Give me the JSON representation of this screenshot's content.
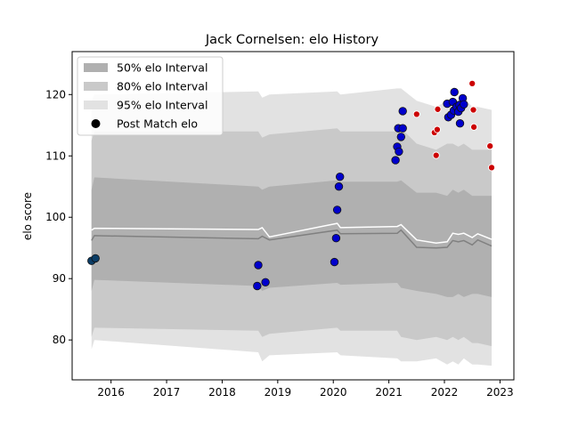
{
  "chart_data": {
    "type": "scatter",
    "title": "Jack Cornelsen: elo History",
    "xlabel": "",
    "ylabel": "elo score",
    "xlim": [
      2015.3,
      2023.25
    ],
    "ylim": [
      73.5,
      127
    ],
    "xticks": [
      2016,
      2017,
      2018,
      2019,
      2020,
      2021,
      2022,
      2023
    ],
    "yticks": [
      80,
      90,
      100,
      110,
      120
    ],
    "grid": false,
    "legend_placement": "top-left",
    "legend": [
      {
        "key": "i50",
        "label": "50% elo Interval",
        "kind": "patch",
        "color": "#b0b0b0"
      },
      {
        "key": "i80",
        "label": "80% elo Interval",
        "kind": "patch",
        "color": "#c9c9c9"
      },
      {
        "key": "i95",
        "label": "95% elo Interval",
        "kind": "patch",
        "color": "#e2e2e2"
      },
      {
        "key": "post",
        "label": "Post Match elo",
        "kind": "marker",
        "color": "#000000"
      }
    ],
    "bands": {
      "x": [
        2015.65,
        2015.7,
        2018.65,
        2018.72,
        2018.85,
        2020.07,
        2020.13,
        2021.15,
        2021.22,
        2021.5,
        2021.85,
        2022.05,
        2022.15,
        2022.25,
        2022.35,
        2022.5,
        2022.6,
        2022.85
      ],
      "q025": [
        78.5,
        80.0,
        78.0,
        76.5,
        77.5,
        78.0,
        77.5,
        77.0,
        76.5,
        76.5,
        77.0,
        76.0,
        76.5,
        76.0,
        77.0,
        76.0,
        76.0,
        75.8
      ],
      "q10": [
        80.5,
        82.0,
        81.5,
        80.5,
        81.0,
        82.0,
        81.5,
        81.5,
        80.5,
        80.0,
        80.5,
        80.0,
        80.5,
        80.0,
        80.5,
        79.5,
        79.5,
        79.0
      ],
      "q25": [
        88.0,
        89.8,
        88.8,
        88.0,
        88.5,
        89.3,
        89.0,
        89.3,
        88.5,
        88.0,
        87.5,
        87.0,
        87.0,
        87.5,
        87.0,
        87.5,
        87.5,
        87.0
      ],
      "q50": [
        96.2,
        97.0,
        96.5,
        96.9,
        96.3,
        97.9,
        97.3,
        97.4,
        97.9,
        95.1,
        95.0,
        95.1,
        96.2,
        96.0,
        96.2,
        95.5,
        96.3,
        95.3
      ],
      "q75": [
        104.5,
        106.5,
        105.0,
        104.5,
        105.0,
        106.0,
        105.8,
        105.8,
        106.0,
        104.0,
        104.0,
        103.5,
        104.5,
        104.0,
        104.5,
        103.5,
        103.5,
        103.5
      ],
      "q90": [
        112.5,
        114.0,
        114.0,
        113.0,
        113.5,
        114.5,
        114.0,
        114.0,
        114.5,
        112.0,
        111.0,
        112.0,
        112.0,
        111.5,
        112.0,
        111.0,
        111.0,
        111.0
      ],
      "q975": [
        119.0,
        120.0,
        120.5,
        119.5,
        120.0,
        120.5,
        120.0,
        121.0,
        121.0,
        119.0,
        118.0,
        119.0,
        119.5,
        119.0,
        119.5,
        118.0,
        118.0,
        117.5
      ],
      "mean": [
        97.9,
        98.2,
        98.0,
        98.3,
        96.8,
        99.0,
        98.3,
        98.5,
        98.8,
        96.3,
        95.8,
        96.0,
        97.4,
        97.2,
        97.4,
        96.7,
        97.3,
        96.4
      ]
    },
    "points": [
      {
        "x": 2015.65,
        "y": 92.9,
        "color": "#0b3d66"
      },
      {
        "x": 2015.72,
        "y": 93.3,
        "color": "#0b3d66"
      },
      {
        "x": 2018.65,
        "y": 92.2,
        "color": "#0000cc"
      },
      {
        "x": 2018.63,
        "y": 88.8,
        "color": "#0000cc"
      },
      {
        "x": 2018.78,
        "y": 89.4,
        "color": "#0000cc"
      },
      {
        "x": 2020.02,
        "y": 92.7,
        "color": "#0000cc"
      },
      {
        "x": 2020.05,
        "y": 96.6,
        "color": "#0000cc"
      },
      {
        "x": 2020.07,
        "y": 101.2,
        "color": "#0000cc"
      },
      {
        "x": 2020.1,
        "y": 105.0,
        "color": "#0000cc"
      },
      {
        "x": 2020.12,
        "y": 106.6,
        "color": "#0000cc"
      },
      {
        "x": 2021.12,
        "y": 109.3,
        "color": "#0000cc"
      },
      {
        "x": 2021.15,
        "y": 111.5,
        "color": "#0000cc"
      },
      {
        "x": 2021.18,
        "y": 110.7,
        "color": "#0000cc"
      },
      {
        "x": 2021.17,
        "y": 114.5,
        "color": "#0000cc"
      },
      {
        "x": 2021.22,
        "y": 113.1,
        "color": "#0000cc"
      },
      {
        "x": 2021.25,
        "y": 114.5,
        "color": "#0000cc"
      },
      {
        "x": 2021.25,
        "y": 117.3,
        "color": "#0000cc"
      },
      {
        "x": 2021.5,
        "y": 116.8,
        "color": "#cc0000"
      },
      {
        "x": 2021.82,
        "y": 113.8,
        "color": "#cc0000"
      },
      {
        "x": 2021.85,
        "y": 110.1,
        "color": "#cc0000"
      },
      {
        "x": 2021.87,
        "y": 114.3,
        "color": "#cc0000"
      },
      {
        "x": 2021.88,
        "y": 117.6,
        "color": "#cc0000"
      },
      {
        "x": 2022.05,
        "y": 118.5,
        "color": "#0000cc"
      },
      {
        "x": 2022.07,
        "y": 116.3,
        "color": "#0000cc"
      },
      {
        "x": 2022.12,
        "y": 116.7,
        "color": "#0000cc"
      },
      {
        "x": 2022.15,
        "y": 118.8,
        "color": "#0000cc"
      },
      {
        "x": 2022.17,
        "y": 117.4,
        "color": "#0000cc"
      },
      {
        "x": 2022.18,
        "y": 120.4,
        "color": "#0000cc"
      },
      {
        "x": 2022.22,
        "y": 118.0,
        "color": "#0000cc"
      },
      {
        "x": 2022.25,
        "y": 117.2,
        "color": "#0000cc"
      },
      {
        "x": 2022.27,
        "y": 118.3,
        "color": "#0000cc"
      },
      {
        "x": 2022.28,
        "y": 115.3,
        "color": "#0000cc"
      },
      {
        "x": 2022.3,
        "y": 117.8,
        "color": "#0000cc"
      },
      {
        "x": 2022.33,
        "y": 119.4,
        "color": "#0000cc"
      },
      {
        "x": 2022.35,
        "y": 118.4,
        "color": "#0000cc"
      },
      {
        "x": 2022.5,
        "y": 121.8,
        "color": "#cc0000"
      },
      {
        "x": 2022.52,
        "y": 117.5,
        "color": "#cc0000"
      },
      {
        "x": 2022.53,
        "y": 114.7,
        "color": "#cc0000"
      },
      {
        "x": 2022.82,
        "y": 111.6,
        "color": "#cc0000"
      },
      {
        "x": 2022.85,
        "y": 108.1,
        "color": "#cc0000"
      }
    ]
  }
}
